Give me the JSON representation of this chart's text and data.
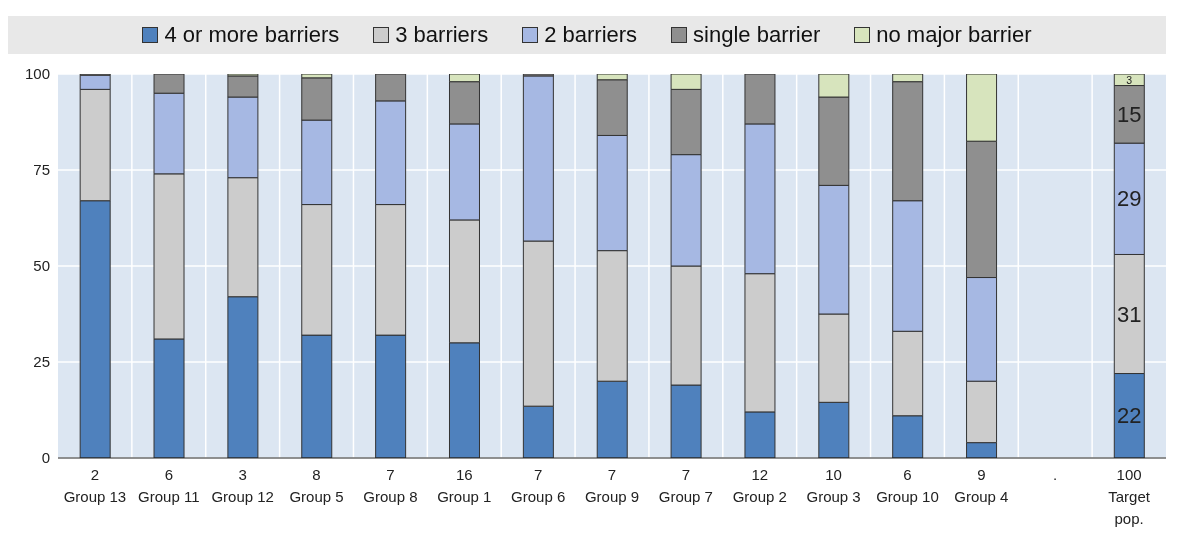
{
  "chart_data": {
    "type": "bar",
    "stacked": true,
    "categories": [
      "2\nGroup 13",
      "6\nGroup 11",
      "3\nGroup 12",
      "8\nGroup 5",
      "7\nGroup 8",
      "16\nGroup 1",
      "7\nGroup 6",
      "7\nGroup 9",
      "7\nGroup 7",
      "12\nGroup 2",
      "10\nGroup 3",
      "6\nGroup 10",
      "9\nGroup 4",
      ".",
      "100\nTarget pop."
    ],
    "series": [
      {
        "name": "4 or more barriers",
        "color": "#4f81bd",
        "values": [
          67,
          31,
          42,
          32,
          32,
          30,
          13.5,
          20,
          19,
          12,
          14.5,
          11,
          4,
          null,
          22
        ],
        "value_labels": [
          null,
          null,
          null,
          null,
          null,
          null,
          null,
          null,
          null,
          null,
          null,
          null,
          null,
          null,
          "22"
        ]
      },
      {
        "name": "3 barriers",
        "color": "#cccccc",
        "values": [
          29,
          43,
          31,
          34,
          34,
          32,
          43,
          34,
          31,
          36,
          23,
          22,
          16,
          null,
          31
        ],
        "value_labels": [
          null,
          null,
          null,
          null,
          null,
          null,
          null,
          null,
          null,
          null,
          null,
          null,
          null,
          null,
          "31"
        ]
      },
      {
        "name": "2 barriers",
        "color": "#a6b8e3",
        "values": [
          3.7,
          21,
          21,
          22,
          27,
          25,
          43,
          30,
          29,
          39,
          33.5,
          34,
          27,
          null,
          29
        ],
        "value_labels": [
          null,
          null,
          null,
          null,
          null,
          null,
          null,
          null,
          null,
          null,
          null,
          null,
          null,
          null,
          "29"
        ]
      },
      {
        "name": "single barrier",
        "color": "#8f8f8f",
        "values": [
          0.3,
          5,
          5.5,
          11,
          7,
          11,
          0.5,
          14.5,
          17,
          13,
          23,
          31,
          35.5,
          null,
          15
        ],
        "value_labels": [
          null,
          null,
          null,
          null,
          null,
          null,
          null,
          null,
          null,
          null,
          null,
          null,
          null,
          null,
          "15"
        ]
      },
      {
        "name": "no major barrier",
        "color": "#d7e4bd",
        "values": [
          0,
          0,
          0.5,
          1,
          null,
          2,
          0,
          1.5,
          4,
          0,
          6,
          2,
          17.5,
          null,
          3
        ],
        "value_labels": [
          null,
          null,
          null,
          null,
          null,
          null,
          null,
          null,
          null,
          null,
          null,
          null,
          null,
          null,
          "3"
        ]
      }
    ],
    "ylim": [
      0,
      100
    ],
    "yticks": [
      0,
      25,
      50,
      75,
      100
    ],
    "grid": true,
    "legend": "top"
  }
}
